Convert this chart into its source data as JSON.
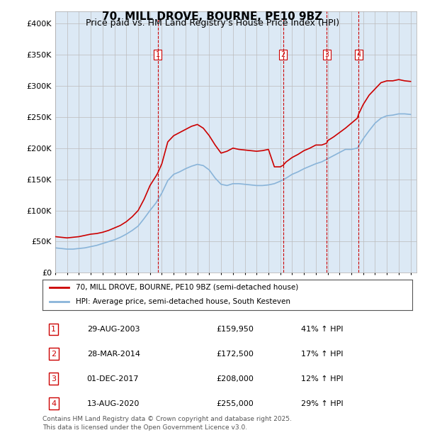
{
  "title": "70, MILL DROVE, BOURNE, PE10 9BZ",
  "subtitle": "Price paid vs. HM Land Registry's House Price Index (HPI)",
  "background_color": "#dce9f5",
  "plot_bg_color": "#dce9f5",
  "red_line_color": "#cc0000",
  "blue_line_color": "#89b4d9",
  "dashed_line_color": "#cc0000",
  "ylabel_ticks": [
    "£0",
    "£50K",
    "£100K",
    "£150K",
    "£200K",
    "£250K",
    "£300K",
    "£350K",
    "£400K"
  ],
  "ytick_values": [
    0,
    50000,
    100000,
    150000,
    200000,
    250000,
    300000,
    350000,
    400000
  ],
  "ylim": [
    0,
    420000
  ],
  "legend_line1": "70, MILL DROVE, BOURNE, PE10 9BZ (semi-detached house)",
  "legend_line2": "HPI: Average price, semi-detached house, South Kesteven",
  "transactions": [
    {
      "num": 1,
      "date": "29-AUG-2003",
      "price": "£159,950",
      "hpi": "41% ↑ HPI",
      "year": 2003.65
    },
    {
      "num": 2,
      "date": "28-MAR-2014",
      "price": "£172,500",
      "hpi": "17% ↑ HPI",
      "year": 2014.24
    },
    {
      "num": 3,
      "date": "01-DEC-2017",
      "price": "£208,000",
      "hpi": "12% ↑ HPI",
      "year": 2017.92
    },
    {
      "num": 4,
      "date": "13-AUG-2020",
      "price": "£255,000",
      "hpi": "29% ↑ HPI",
      "year": 2020.62
    }
  ],
  "footer_line1": "Contains HM Land Registry data © Crown copyright and database right 2025.",
  "footer_line2": "This data is licensed under the Open Government Licence v3.0.",
  "red_x": [
    1995.0,
    1995.5,
    1996.0,
    1996.5,
    1997.0,
    1997.5,
    1998.0,
    1998.5,
    1999.0,
    1999.5,
    2000.0,
    2000.5,
    2001.0,
    2001.5,
    2002.0,
    2002.5,
    2003.0,
    2003.5,
    2003.65,
    2004.0,
    2004.5,
    2005.0,
    2005.5,
    2006.0,
    2006.5,
    2007.0,
    2007.5,
    2008.0,
    2008.5,
    2009.0,
    2009.5,
    2010.0,
    2010.5,
    2011.0,
    2011.5,
    2012.0,
    2012.5,
    2013.0,
    2013.5,
    2014.0,
    2014.24,
    2014.5,
    2015.0,
    2015.5,
    2016.0,
    2016.5,
    2017.0,
    2017.5,
    2017.92,
    2018.0,
    2018.5,
    2019.0,
    2019.5,
    2020.0,
    2020.5,
    2020.62,
    2021.0,
    2021.5,
    2022.0,
    2022.5,
    2023.0,
    2023.5,
    2024.0,
    2024.5,
    2025.0
  ],
  "red_y": [
    58000,
    57000,
    56000,
    57000,
    58000,
    60000,
    62000,
    63000,
    65000,
    68000,
    72000,
    76000,
    82000,
    90000,
    100000,
    118000,
    140000,
    155000,
    159950,
    175000,
    210000,
    220000,
    225000,
    230000,
    235000,
    238000,
    232000,
    220000,
    205000,
    192000,
    195000,
    200000,
    198000,
    197000,
    196000,
    195000,
    196000,
    198000,
    170000,
    170000,
    172500,
    178000,
    185000,
    190000,
    196000,
    200000,
    205000,
    205000,
    208000,
    212000,
    218000,
    225000,
    232000,
    240000,
    248000,
    255000,
    270000,
    285000,
    295000,
    305000,
    308000,
    308000,
    310000,
    308000,
    307000
  ],
  "blue_x": [
    1995.0,
    1995.5,
    1996.0,
    1996.5,
    1997.0,
    1997.5,
    1998.0,
    1998.5,
    1999.0,
    1999.5,
    2000.0,
    2000.5,
    2001.0,
    2001.5,
    2002.0,
    2002.5,
    2003.0,
    2003.5,
    2004.0,
    2004.5,
    2005.0,
    2005.5,
    2006.0,
    2006.5,
    2007.0,
    2007.5,
    2008.0,
    2008.5,
    2009.0,
    2009.5,
    2010.0,
    2010.5,
    2011.0,
    2011.5,
    2012.0,
    2012.5,
    2013.0,
    2013.5,
    2014.0,
    2014.5,
    2015.0,
    2015.5,
    2016.0,
    2016.5,
    2017.0,
    2017.5,
    2018.0,
    2018.5,
    2019.0,
    2019.5,
    2020.0,
    2020.5,
    2021.0,
    2021.5,
    2022.0,
    2022.5,
    2023.0,
    2023.5,
    2024.0,
    2024.5,
    2025.0
  ],
  "blue_y": [
    40000,
    39000,
    38000,
    38000,
    39000,
    40000,
    42000,
    44000,
    47000,
    50000,
    53000,
    57000,
    62000,
    68000,
    75000,
    87000,
    100000,
    112000,
    128000,
    148000,
    158000,
    162000,
    167000,
    171000,
    174000,
    172000,
    165000,
    152000,
    142000,
    140000,
    143000,
    143000,
    142000,
    141000,
    140000,
    140000,
    141000,
    143000,
    147000,
    152000,
    158000,
    162000,
    167000,
    171000,
    175000,
    178000,
    183000,
    188000,
    193000,
    198000,
    198000,
    200000,
    215000,
    228000,
    240000,
    248000,
    252000,
    253000,
    255000,
    255000,
    254000
  ]
}
